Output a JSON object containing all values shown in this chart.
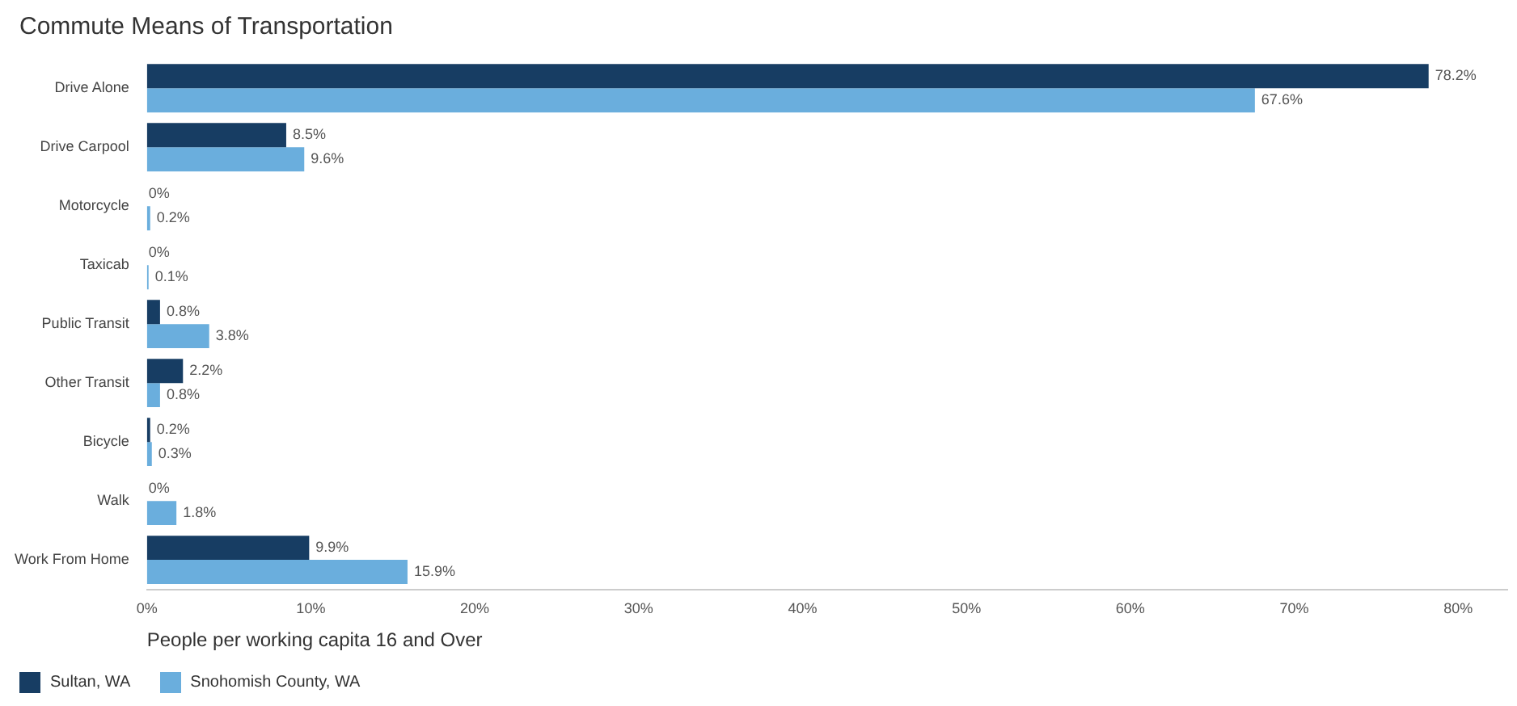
{
  "chart_data": {
    "type": "bar",
    "orientation": "horizontal",
    "title": "Commute Means of Transportation",
    "xlabel": "People per working capita 16 and Over",
    "categories": [
      "Drive Alone",
      "Drive Carpool",
      "Motorcycle",
      "Taxicab",
      "Public Transit",
      "Other Transit",
      "Bicycle",
      "Walk",
      "Work From Home"
    ],
    "series": [
      {
        "name": "Sultan, WA",
        "color": "#173d63",
        "values": [
          78.2,
          8.5,
          0,
          0,
          0.8,
          2.2,
          0.2,
          0,
          9.9
        ],
        "value_labels": [
          "78.2%",
          "8.5%",
          "0%",
          "0%",
          "0.8%",
          "2.2%",
          "0.2%",
          "0%",
          "9.9%"
        ]
      },
      {
        "name": "Snohomish County, WA",
        "color": "#6aaedd",
        "values": [
          67.6,
          9.6,
          0.2,
          0.1,
          3.8,
          0.8,
          0.3,
          1.8,
          15.9
        ],
        "value_labels": [
          "67.6%",
          "9.6%",
          "0.2%",
          "0.1%",
          "3.8%",
          "0.8%",
          "0.3%",
          "1.8%",
          "15.9%"
        ]
      }
    ],
    "xlim": [
      0,
      83
    ],
    "xticks": [
      {
        "value": 0,
        "label": "0%"
      },
      {
        "value": 10,
        "label": "10%"
      },
      {
        "value": 20,
        "label": "20%"
      },
      {
        "value": 30,
        "label": "30%"
      },
      {
        "value": 40,
        "label": "40%"
      },
      {
        "value": 50,
        "label": "50%"
      },
      {
        "value": 60,
        "label": "60%"
      },
      {
        "value": 70,
        "label": "70%"
      },
      {
        "value": 80,
        "label": "80%"
      }
    ],
    "grid": false,
    "legend": "bottom left"
  }
}
